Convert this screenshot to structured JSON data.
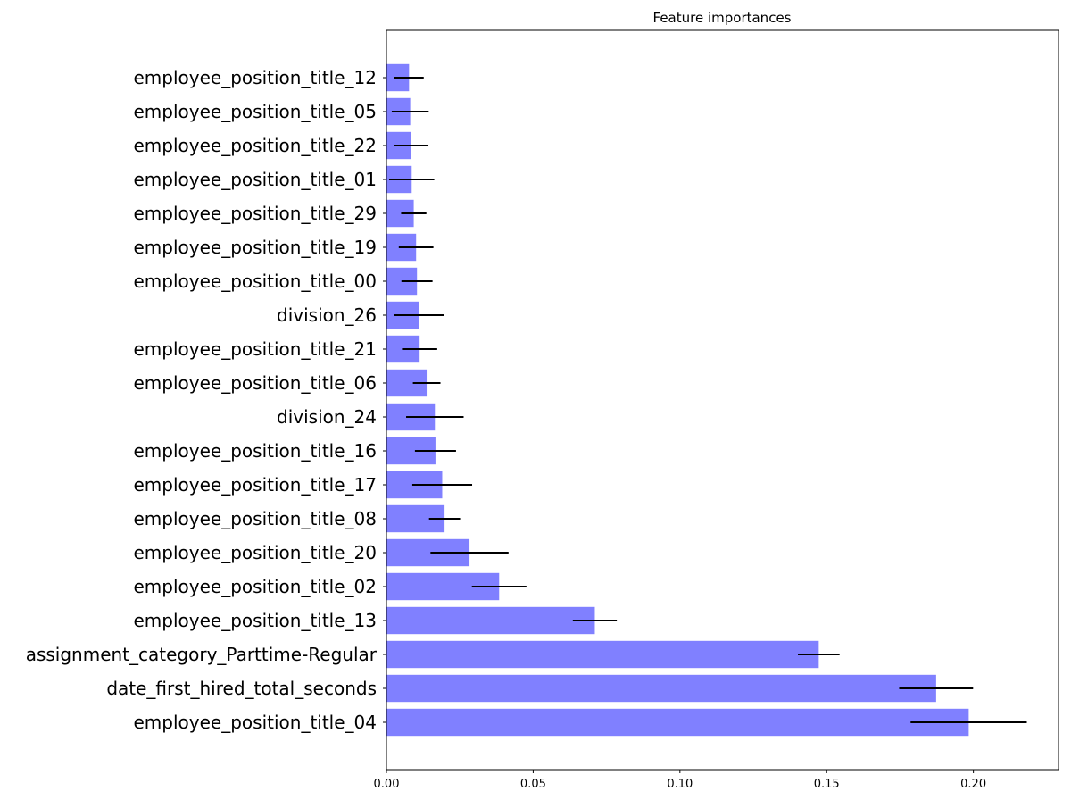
{
  "chart_data": {
    "type": "bar",
    "orientation": "horizontal",
    "title": "Feature importances",
    "xlabel": "",
    "ylabel": "",
    "xlim": [
      0.0,
      0.229
    ],
    "xticks": [
      0.0,
      0.05,
      0.1,
      0.15,
      0.2
    ],
    "xtick_labels": [
      "0.00",
      "0.05",
      "0.10",
      "0.15",
      "0.20"
    ],
    "grid": false,
    "bar_color": "#8080ff",
    "error_color": "#000000",
    "categories": [
      "employee_position_title_12",
      "employee_position_title_05",
      "employee_position_title_22",
      "employee_position_title_01",
      "employee_position_title_29",
      "employee_position_title_19",
      "employee_position_title_00",
      "division_26",
      "employee_position_title_21",
      "employee_position_title_06",
      "division_24",
      "employee_position_title_16",
      "employee_position_title_17",
      "employee_position_title_08",
      "employee_position_title_20",
      "employee_position_title_02",
      "employee_position_title_13",
      "assignment_category_Parttime-Regular",
      "date_first_hired_total_seconds",
      "employee_position_title_04"
    ],
    "values": [
      0.0077,
      0.0081,
      0.0085,
      0.0086,
      0.0093,
      0.0101,
      0.0104,
      0.0111,
      0.0113,
      0.0137,
      0.0165,
      0.0167,
      0.019,
      0.0198,
      0.0283,
      0.0384,
      0.071,
      0.1473,
      0.1873,
      0.1984
    ],
    "errors": [
      0.005,
      0.0063,
      0.0058,
      0.0077,
      0.0043,
      0.0059,
      0.0053,
      0.0084,
      0.006,
      0.0047,
      0.0098,
      0.007,
      0.0102,
      0.0053,
      0.0133,
      0.0093,
      0.0075,
      0.0071,
      0.0126,
      0.0198
    ]
  }
}
